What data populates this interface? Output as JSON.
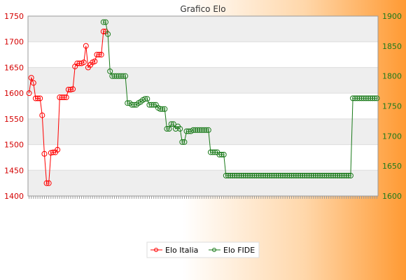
{
  "chart_data": {
    "type": "line",
    "title": "Grafico Elo",
    "xlabel": "",
    "ylabel": "",
    "legend_position": "bottom-center",
    "grid": true,
    "series": [
      {
        "name": "Elo Italia",
        "axis": "left",
        "color": "#ff0000",
        "ylim": [
          1400,
          1750
        ],
        "values": [
          1600,
          1630,
          1620,
          1590,
          1590,
          1590,
          1557,
          1482,
          1425,
          1425,
          1484,
          1485,
          1485,
          1490,
          1592,
          1592,
          1592,
          1592,
          1607,
          1607,
          1608,
          1652,
          1658,
          1658,
          1658,
          1660,
          1692,
          1650,
          1655,
          1660,
          1662,
          1675,
          1675,
          1675,
          1720,
          1720
        ]
      },
      {
        "name": "Elo FIDE",
        "axis": "right",
        "color": "#1a7a1a",
        "ylim": [
          1600,
          1900
        ],
        "x_offset": 34,
        "values": [
          1890,
          1890,
          1870,
          1808,
          1800,
          1800,
          1800,
          1800,
          1800,
          1800,
          1800,
          1755,
          1755,
          1752,
          1752,
          1752,
          1755,
          1757,
          1760,
          1762,
          1762,
          1752,
          1752,
          1752,
          1752,
          1747,
          1745,
          1745,
          1745,
          1712,
          1712,
          1720,
          1720,
          1712,
          1716,
          1712,
          1690,
          1690,
          1708,
          1708,
          1708,
          1710,
          1710,
          1710,
          1710,
          1710,
          1710,
          1710,
          1710,
          1673,
          1673,
          1673,
          1673,
          1669,
          1669,
          1669,
          1634,
          1634,
          1634,
          1634,
          1634,
          1634,
          1634,
          1634,
          1634,
          1634,
          1634,
          1634,
          1634,
          1634,
          1634,
          1634,
          1634,
          1634,
          1634,
          1634,
          1634,
          1634,
          1634,
          1634,
          1634,
          1634,
          1634,
          1634,
          1634,
          1634,
          1634,
          1634,
          1634,
          1634,
          1634,
          1634,
          1634,
          1634,
          1634,
          1634,
          1634,
          1634,
          1634,
          1634,
          1634,
          1634,
          1634,
          1634,
          1634,
          1634,
          1634,
          1634,
          1634,
          1634,
          1634,
          1634,
          1634,
          1634,
          1763,
          1763,
          1763,
          1763,
          1763,
          1763,
          1763,
          1763,
          1763,
          1763,
          1763,
          1763
        ]
      }
    ],
    "y_left": {
      "ticks": [
        1400,
        1450,
        1500,
        1550,
        1600,
        1650,
        1700,
        1750
      ],
      "color": "#d40000"
    },
    "y_right": {
      "ticks": [
        1600,
        1650,
        1700,
        1750,
        1800,
        1850,
        1900
      ],
      "color": "#1a7a1a"
    }
  }
}
